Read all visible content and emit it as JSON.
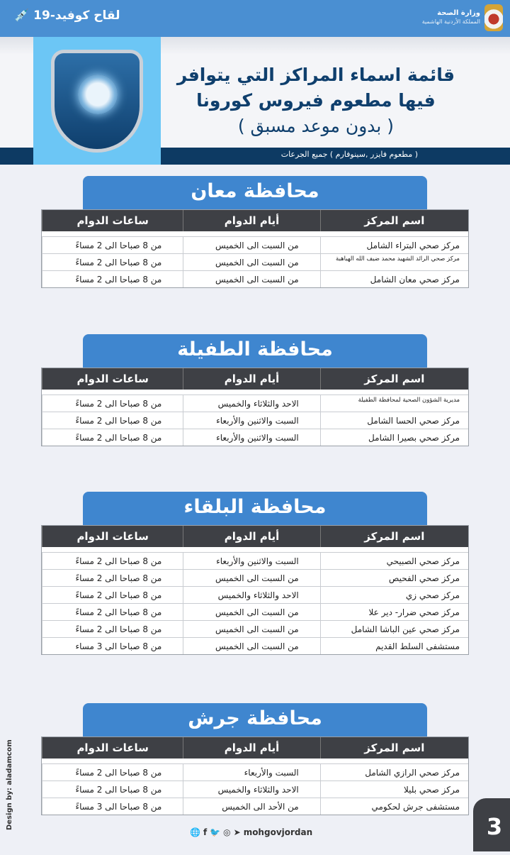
{
  "header": {
    "ministry": "وزارة الصحة",
    "kingdom": "المملكة الأردنية الهاشمية",
    "campaign": "لقاح كوفيد-19",
    "campaign_icon": "vaccine-vial-icon"
  },
  "banner": {
    "title_line1": "قائمة اسماء المراكز التي يتوافر",
    "title_line2": "فيها مطعوم فيروس كورونا",
    "title_line3": "( بدون موعد مسبق )",
    "vaccines": "( مطعوم فايزر ,سينوفارم )  جميع الجرعات"
  },
  "columns": {
    "name": "اسم المركز",
    "days": "أيام الدوام",
    "hours": "ساعات الدوام"
  },
  "sections": [
    {
      "title": "محافظة معان",
      "rows": [
        {
          "name": "مركز صحي  البتراء الشامل",
          "days": "من السبت الى الخميس",
          "hours": "من 8 صباحا الى 2 مساءً"
        },
        {
          "name": "مركز صحي  الرائد الشهيد محمد ضيف الله الهباهبة",
          "days": "من السبت الى الخميس",
          "hours": "من 8 صباحا الى 2 مساءً"
        },
        {
          "name": "مركز صحي معان الشامل",
          "days": "من السبت الى الخميس",
          "hours": "من 8 صباحا الى 2 مساءً"
        }
      ]
    },
    {
      "title": "محافظة الطفيلة",
      "rows": [
        {
          "name": "مديرية الشؤون الصحية لمحافظة الطفيلة",
          "days": "الاحد والثلاثاء والخميس",
          "hours": "من 8 صباحا الى 2 مساءً"
        },
        {
          "name": "مركز صحي الحسا الشامل",
          "days": "السبت والاثنين والأربعاء",
          "hours": "من 8 صباحا الى 2 مساءً"
        },
        {
          "name": "مركز صحي بصيرا الشامل",
          "days": "السبت والاثنين والأربعاء",
          "hours": "من 8 صباحا الى 2 مساءً"
        }
      ]
    },
    {
      "title": "محافظة البلقاء",
      "rows": [
        {
          "name": "مركز صحي الصبيحي",
          "days": "السبت والاثنين والأربعاء",
          "hours": "من 8 صباحا الى 2 مساءً"
        },
        {
          "name": "مركز صحي الفحيص",
          "days": "من السبت الى الخميس",
          "hours": "من 8 صباحا الى 2 مساءً"
        },
        {
          "name": "مركز صحي زي",
          "days": "الاحد والثلاثاء والخميس",
          "hours": "من 8 صباحا الى 2 مساءً"
        },
        {
          "name": "مركز صحي ضرار- دير علا",
          "days": "من السبت الى الخميس",
          "hours": "من 8 صباحا الى 2 مساءً"
        },
        {
          "name": "مركز صحي عين الباشا الشامل",
          "days": "من السبت الى الخميس",
          "hours": "من 8 صباحا الى 2 مساءً"
        },
        {
          "name": "مستشفى السلط القديم",
          "days": "من السبت الى الخميس",
          "hours": "من 8 صباحا الى 3 مساء"
        }
      ]
    },
    {
      "title": "محافظة جرش",
      "rows": [
        {
          "name": "مركز صحي الرازي الشامل",
          "days": "السبت والأربعاء",
          "hours": "من 8 صباحا الى 2 مساءً"
        },
        {
          "name": "مركز صحي بليلا",
          "days": "الاحد والثلاثاء والخميس",
          "hours": "من 8 صباحا الى 2 مساءً"
        },
        {
          "name": "مستشفى جرش لحكومي",
          "days": "من الأحد الى الخميس",
          "hours": "من 8 صباحا الى 3 مساءً"
        }
      ]
    }
  ],
  "footer": {
    "credit": "Design by: aladamcom",
    "handle": "mohgovjordan",
    "social_icons": [
      "globe-icon",
      "facebook-icon",
      "twitter-icon",
      "instagram-icon",
      "telegram-icon"
    ],
    "page_number": "3"
  },
  "colors": {
    "header_blue": "#4a8fd2",
    "tab_blue": "#3f86cf",
    "navy": "#0d3a63",
    "table_header": "#3e4045",
    "title_text": "#0f3f6d"
  }
}
